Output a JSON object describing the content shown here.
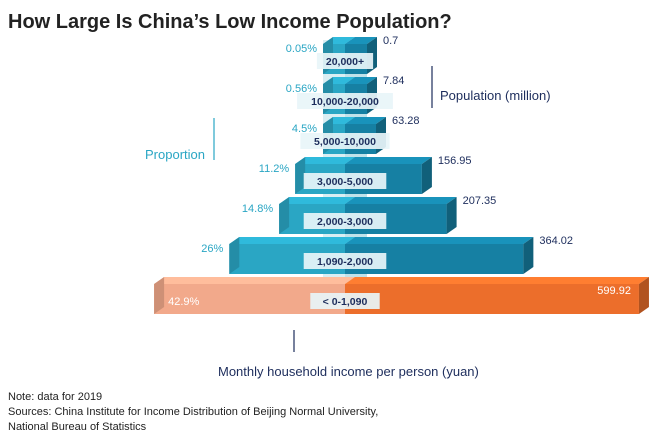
{
  "title": "How Large Is China’s Low Income Population?",
  "left_axis_label": "Proportion",
  "right_axis_label": "Population (million)",
  "bottom_axis_label": "Monthly household income per person (yuan)",
  "notes": [
    "Note: data for 2019",
    "Sources: China Institute for Income Distribution of Beijing Normal University,",
    "National Bureau of Statistics"
  ],
  "colors": {
    "proportion": "#2aa6c4",
    "population": "#1680a3",
    "highlight_left": "#f2a98b",
    "highlight_right": "#ec6e2b",
    "text_dark": "#1d2d5c"
  },
  "chart_data": {
    "type": "bar",
    "orientation": "horizontal-pyramid",
    "categories": [
      "20,000+",
      "10,000-20,000",
      "5,000-10,000",
      "3,000-5,000",
      "2,000-3,000",
      "1,090-2,000",
      "< 0-1,090"
    ],
    "proportion_labels": [
      "0.05%",
      "0.56%",
      "4.5%",
      "11.2%",
      "14.8%",
      "26%",
      "42.9%"
    ],
    "population_labels": [
      "0.7",
      "7.84",
      "63.28",
      "156.95",
      "207.35",
      "364.02",
      "599.92"
    ],
    "series": [
      {
        "name": "Proportion",
        "values": [
          0.05,
          0.56,
          4.5,
          11.2,
          14.8,
          26,
          42.9
        ]
      },
      {
        "name": "Population (million)",
        "values": [
          0.7,
          7.84,
          63.28,
          156.95,
          207.35,
          364.02,
          599.92
        ]
      }
    ],
    "highlighted_category": "< 0-1,090"
  }
}
